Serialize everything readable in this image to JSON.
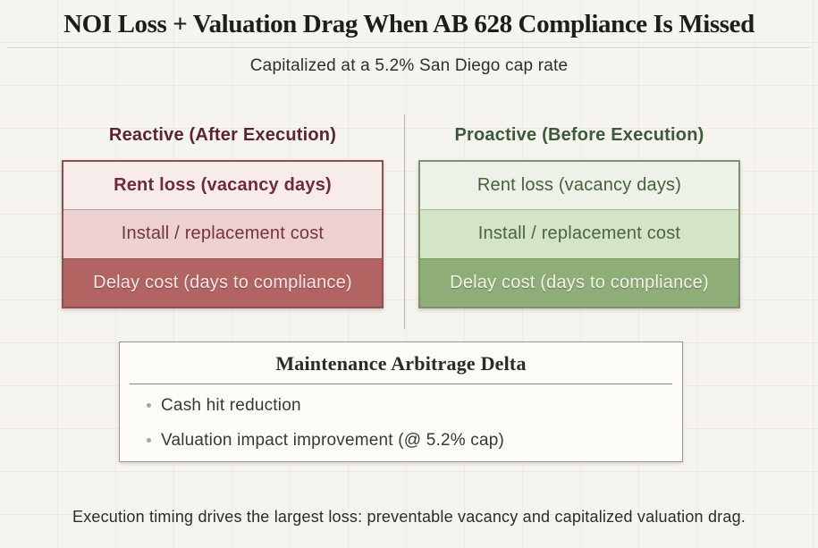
{
  "title": "NOI Loss + Valuation Drag When AB 628 Compliance Is Missed",
  "subtitle": "Capitalized at a 5.2% San Diego cap rate",
  "background_color": "#f6f4ef",
  "columns": [
    {
      "header": "Reactive (After Execution)",
      "header_color": "#5d2334",
      "border_color": "#8e4e53",
      "rows": [
        {
          "label": "Rent loss (vacancy days)",
          "bg": "#f8eceb",
          "color": "#6f2b37"
        },
        {
          "label": "Install / replacement cost",
          "bg": "#ecd1d0",
          "color": "#74333d"
        },
        {
          "label": "Delay cost (days to compliance)",
          "bg": "#b26463",
          "color": "#f5e7e5"
        }
      ]
    },
    {
      "header": "Proactive (Before Execution)",
      "header_color": "#3b5a37",
      "border_color": "#7f9171",
      "rows": [
        {
          "label": "Rent loss (vacancy days)",
          "bg": "#edf2e8",
          "color": "#44603c"
        },
        {
          "label": "Install / replacement cost",
          "bg": "#d5e3c6",
          "color": "#4a6540"
        },
        {
          "label": "Delay cost (days to compliance)",
          "bg": "#8fad76",
          "color": "#f2f5ec"
        }
      ]
    }
  ],
  "delta_box": {
    "title": "Maintenance Arbitrage Delta",
    "bullets": [
      "Cash hit reduction",
      "Valuation impact improvement (@ 5.2% cap)"
    ]
  },
  "footer": "Execution timing drives the largest loss: preventable vacancy and capitalized valuation drag."
}
